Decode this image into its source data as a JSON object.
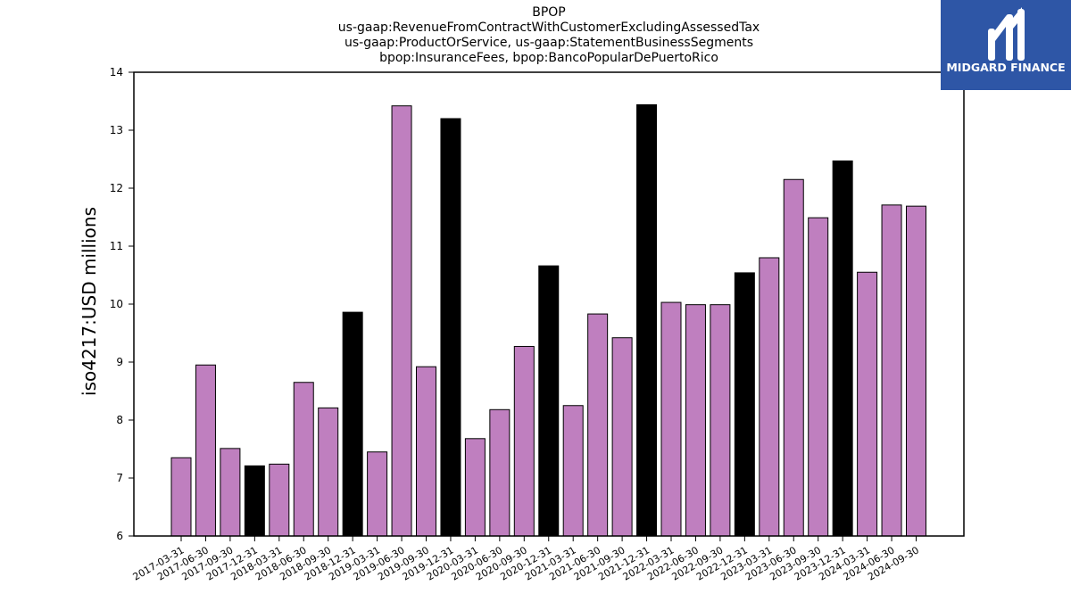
{
  "logo": {
    "text": "MIDGARD FINANCE",
    "background": "#2e56a6",
    "text_color": "#ffffff",
    "icon": "midgard-logo-icon"
  },
  "chart_data": {
    "type": "bar",
    "title_lines": [
      "BPOP",
      "us-gaap:RevenueFromContractWithCustomerExcludingAssessedTax",
      "us-gaap:ProductOrService, us-gaap:StatementBusinessSegments",
      "bpop:InsuranceFees, bpop:BancoPopularDePuertoRico"
    ],
    "xlabel": "",
    "ylabel": "iso4217:USD  millions",
    "ylim": [
      6,
      14
    ],
    "yticks": [
      6,
      7,
      8,
      9,
      10,
      11,
      12,
      13,
      14
    ],
    "grid": false,
    "colors": {
      "quarter": "#bf7fbf",
      "year_end": "#000000",
      "edge": "#000000"
    },
    "categories": [
      "2017-03-31",
      "2017-06-30",
      "2017-09-30",
      "2017-12-31",
      "2018-03-31",
      "2018-06-30",
      "2018-09-30",
      "2018-12-31",
      "2019-03-31",
      "2019-06-30",
      "2019-09-30",
      "2019-12-31",
      "2020-03-31",
      "2020-06-30",
      "2020-09-30",
      "2020-12-31",
      "2021-03-31",
      "2021-06-30",
      "2021-09-30",
      "2021-12-31",
      "2022-03-31",
      "2022-06-30",
      "2022-09-30",
      "2022-12-31",
      "2023-03-31",
      "2023-06-30",
      "2023-09-30",
      "2023-12-31",
      "2024-03-31",
      "2024-06-30",
      "2024-09-30"
    ],
    "values": [
      7.35,
      8.95,
      7.51,
      7.21,
      7.24,
      8.65,
      8.21,
      9.86,
      7.45,
      13.42,
      8.92,
      13.2,
      7.68,
      8.18,
      9.27,
      10.66,
      8.25,
      9.83,
      9.42,
      13.44,
      10.03,
      9.99,
      9.99,
      10.54,
      10.8,
      12.15,
      11.49,
      12.47,
      10.55,
      11.71,
      11.69
    ]
  }
}
